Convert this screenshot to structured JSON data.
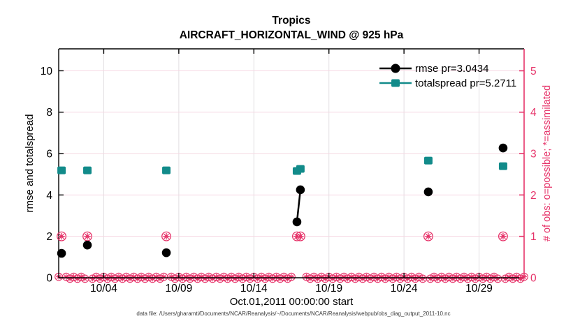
{
  "title": {
    "line1": "Tropics",
    "line2": "AIRCRAFT_HORIZONTAL_WIND @ 925 hPa"
  },
  "axes": {
    "left_label": "rmse and totalspread",
    "right_label": "# of obs: o=possible; *=assimilated",
    "x_label": "Oct.01,2011 00:00:00 start",
    "left_ticks": [
      "0",
      "2",
      "4",
      "6",
      "8",
      "10"
    ],
    "left_tick_values": [
      0,
      2,
      4,
      6,
      8,
      10
    ],
    "right_ticks": [
      "0",
      "1",
      "2",
      "3",
      "4",
      "5"
    ],
    "right_tick_values": [
      0,
      1,
      2,
      3,
      4,
      5
    ],
    "x_ticks": [
      {
        "day": 4,
        "label": "10/04"
      },
      {
        "day": 9,
        "label": "10/09"
      },
      {
        "day": 14,
        "label": "10/14"
      },
      {
        "day": 19,
        "label": "10/19"
      },
      {
        "day": 24,
        "label": "10/24"
      },
      {
        "day": 29,
        "label": "10/29"
      }
    ]
  },
  "legend": {
    "rmse_label": "rmse pr=3.0434",
    "totalspread_label": "totalspread pr=5.2711"
  },
  "caption": "data file: /Users/gharamti/Documents/NCAR/Reanalysis/~/Documents/NCAR/Reanalysis/webpub/obs_diag_output_2011-10.nc",
  "colors": {
    "rmse": "#000000",
    "totalspread": "#128b8a",
    "obs_pink": "#e63369",
    "grid_h_pink": "#f6d7e2",
    "grid_v_gray": "#e2dee2",
    "caption_gray": "#3a3a3a"
  },
  "chart_data": {
    "type": "line",
    "title": "Tropics — AIRCRAFT_HORIZONTAL_WIND @ 925 hPa",
    "xlabel": "Oct.01,2011 00:00:00 start",
    "ylabel_left": "rmse and totalspread",
    "ylabel_right": "# of obs: o=possible; *=assimilated",
    "xlim_days": [
      1,
      32
    ],
    "ylim_left": [
      0,
      11.06
    ],
    "ylim_right": [
      0,
      5.53
    ],
    "x_days": [
      1.19,
      2.91,
      8.17,
      16.87,
      17.1,
      25.62,
      30.6
    ],
    "series": [
      {
        "name": "rmse",
        "marker": "circle",
        "values": [
          1.18,
          1.58,
          1.21,
          2.7,
          4.25,
          4.15,
          6.27
        ]
      },
      {
        "name": "totalspread",
        "marker": "square",
        "values": [
          5.19,
          5.19,
          5.19,
          5.16,
          5.26,
          5.66,
          5.39
        ]
      },
      {
        "name": "obs_possible_and_assimilated",
        "marker": "circle-asterisk",
        "axis": "right",
        "values": [
          1,
          1,
          1,
          1,
          1,
          1,
          1
        ]
      }
    ],
    "connected_segments": [
      [
        3,
        4
      ]
    ],
    "zero_obs_row": {
      "axis": "right",
      "value": 0,
      "start_day": 1.0,
      "end_day": 32.0,
      "step_days": 0.25,
      "skip_days": [
        1.25,
        3.0,
        8.25,
        16.75,
        17.0,
        17.25,
        25.5,
        30.5
      ]
    }
  }
}
